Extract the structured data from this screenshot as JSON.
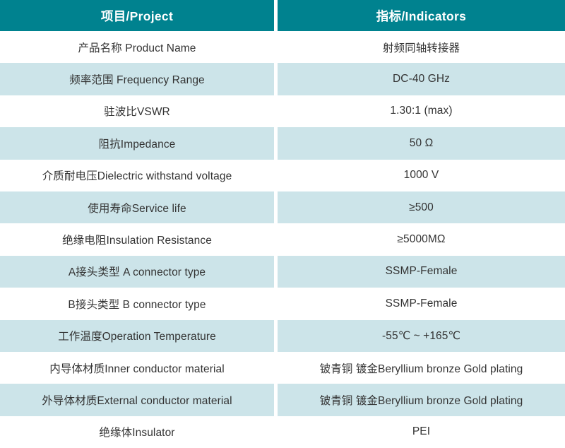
{
  "table": {
    "colors": {
      "header_bg": "#00828F",
      "header_text": "#FFFFFF",
      "row_alt_bg": "#CCE4E9",
      "row_bg": "#FFFFFF",
      "body_text": "#333333"
    },
    "header": {
      "project_col": "项目/Project",
      "indicators_col": "指标/Indicators"
    },
    "rows": [
      {
        "label": "产品名称 Product Name",
        "value": "射频同轴转接器"
      },
      {
        "label": "频率范围 Frequency Range",
        "value": "DC-40 GHz"
      },
      {
        "label": "驻波比VSWR",
        "value": "1.30:1 (max)"
      },
      {
        "label": "阻抗Impedance",
        "value": "50 Ω"
      },
      {
        "label": "介质耐电压Dielectric withstand voltage",
        "value": "1000 V"
      },
      {
        "label": "使用寿命Service life",
        "value": "≥500"
      },
      {
        "label": "绝缘电阻Insulation Resistance",
        "value": "≥5000MΩ"
      },
      {
        "label": "A接头类型 A connector type",
        "value": "SSMP-Female"
      },
      {
        "label": "B接头类型 B connector type",
        "value": "SSMP-Female"
      },
      {
        "label": "工作温度Operation Temperature",
        "value": "-55℃ ~ +165℃"
      },
      {
        "label": "内导体材质Inner conductor material",
        "value": "铍青铜 镀金Beryllium bronze Gold plating"
      },
      {
        "label": "外导体材质External conductor material",
        "value": "铍青铜 镀金Beryllium bronze Gold plating"
      },
      {
        "label": "绝缘体Insulator",
        "value": "PEI"
      }
    ]
  }
}
